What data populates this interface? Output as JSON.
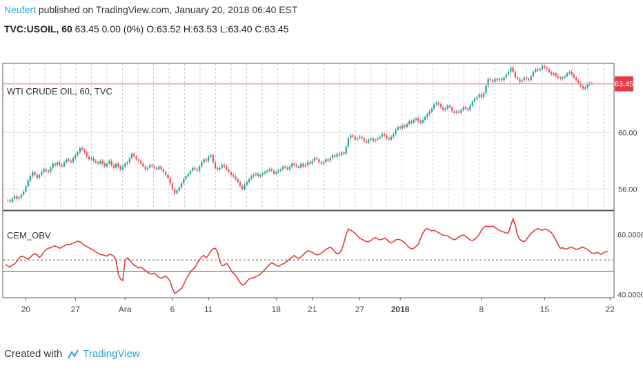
{
  "header": {
    "author": "Neufert",
    "published_text": " published on TradingView.com, January 20, 2018 06:40 EST",
    "symbol": "TVC:USOIL, 60",
    "quote": " 63.45 0.00 (0%) O:63.52 H:63.53 L:63.40 C:63.45"
  },
  "footer": {
    "created_with": "Created with",
    "brand": "TradingView",
    "logo_icon": "tradingview-logo-icon"
  },
  "colors": {
    "up": "#26a69a",
    "down": "#ef5350",
    "obv_line": "#e53935",
    "price_line": "#f48fb1",
    "price_badge": "#e53945",
    "brand": "#2a9fd6"
  },
  "chart_data": [
    {
      "type": "candlestick",
      "title": "WTI CRUDE OIL, 60, TVC",
      "y_ticks": [
        "56.00",
        "60.00"
      ],
      "y_tick_values": [
        56,
        60
      ],
      "ylim": [
        54.6,
        64.8
      ],
      "last_price": 63.45,
      "last_price_label": "63.45",
      "x_tick_labels": [
        "20",
        "27",
        "Ara",
        "6",
        "11",
        "18",
        "21",
        "27",
        "2018",
        "8",
        "15",
        "22"
      ],
      "x_tick_index": [
        9,
        31,
        53,
        74,
        90,
        120,
        136,
        157,
        175,
        211,
        239,
        268
      ],
      "grid": true,
      "series": [
        {
          "values": [
            55.2,
            55.2,
            55.1,
            55.3,
            55.5,
            55.3,
            55.4,
            55.6,
            55.8,
            56.2,
            56.6,
            56.9,
            57.2,
            57.0,
            56.8,
            57.0,
            57.2,
            57.4,
            57.3,
            57.2,
            57.5,
            57.8,
            57.7,
            57.9,
            57.7,
            57.6,
            57.9,
            58.1,
            58.0,
            57.9,
            58.2,
            58.4,
            58.6,
            58.9,
            58.8,
            58.6,
            58.3,
            58.1,
            58.2,
            58.0,
            57.9,
            57.8,
            58.0,
            57.8,
            57.6,
            57.8,
            58.0,
            57.7,
            57.5,
            57.8,
            57.6,
            57.4,
            57.6,
            57.8,
            57.9,
            58.2,
            58.5,
            58.3,
            58.1,
            58.0,
            57.8,
            57.6,
            57.4,
            57.5,
            57.7,
            57.6,
            57.5,
            57.4,
            57.6,
            57.4,
            57.2,
            57.0,
            56.8,
            56.4,
            56.0,
            55.7,
            55.9,
            56.1,
            56.4,
            56.7,
            56.9,
            57.1,
            57.3,
            57.5,
            57.4,
            57.3,
            57.6,
            57.9,
            58.1,
            58.0,
            58.3,
            58.4,
            57.9,
            57.5,
            57.4,
            57.5,
            57.7,
            57.6,
            57.4,
            57.2,
            57.0,
            56.9,
            56.7,
            56.5,
            56.2,
            56.0,
            56.3,
            56.5,
            56.7,
            56.9,
            57.0,
            57.1,
            56.9,
            57.0,
            57.1,
            57.2,
            57.3,
            57.4,
            57.3,
            57.1,
            57.2,
            57.3,
            57.4,
            57.6,
            57.5,
            57.4,
            57.6,
            57.8,
            57.7,
            57.6,
            57.5,
            57.8,
            57.6,
            57.7,
            57.9,
            57.8,
            58.0,
            58.2,
            58.1,
            57.9,
            57.8,
            57.9,
            58.1,
            58.0,
            58.2,
            58.4,
            58.3,
            58.5,
            58.4,
            58.6,
            58.5,
            59.0,
            59.6,
            59.8,
            59.7,
            59.5,
            59.6,
            59.7,
            59.6,
            59.4,
            59.3,
            59.5,
            59.6,
            59.4,
            59.5,
            59.6,
            59.7,
            59.9,
            59.8,
            59.6,
            59.5,
            59.7,
            59.9,
            60.2,
            60.4,
            60.3,
            60.5,
            60.4,
            60.6,
            60.8,
            60.7,
            60.9,
            61.0,
            60.8,
            60.7,
            60.9,
            61.1,
            61.3,
            61.5,
            61.7,
            62.0,
            62.1,
            62.0,
            61.8,
            61.6,
            61.7,
            61.9,
            61.8,
            61.5,
            61.4,
            61.5,
            61.4,
            61.6,
            61.8,
            61.7,
            61.6,
            61.9,
            62.2,
            62.4,
            62.5,
            62.7,
            62.5,
            62.8,
            63.3,
            63.8,
            63.7,
            63.6,
            63.8,
            63.7,
            63.8,
            63.7,
            63.9,
            64.1,
            64.3,
            64.6,
            64.3,
            63.9,
            63.8,
            63.6,
            63.7,
            63.9,
            63.8,
            63.7,
            64.0,
            64.3,
            64.5,
            64.4,
            64.5,
            64.7,
            64.6,
            64.5,
            64.3,
            64.1,
            64.2,
            64.0,
            63.9,
            63.8,
            63.9,
            64.0,
            64.2,
            64.3,
            64.1,
            63.9,
            63.7,
            63.5,
            63.3,
            63.1,
            63.2,
            63.4,
            63.5,
            63.45
          ]
        }
      ]
    },
    {
      "type": "line",
      "title": "CEM_OBV",
      "y_ticks": [
        "60.0000",
        "40.0000"
      ],
      "y_tick_values": [
        60,
        40
      ],
      "ylim": [
        39.2,
        67.4
      ],
      "reference_line": 51.5,
      "series": [
        {
          "values": [
            50.0,
            49.5,
            49.2,
            49.8,
            50.2,
            51.0,
            52.2,
            52.8,
            52.6,
            52.2,
            51.8,
            52.4,
            53.2,
            53.6,
            53.2,
            52.4,
            53.0,
            54.2,
            55.0,
            55.4,
            55.6,
            56.0,
            56.2,
            55.8,
            55.4,
            55.8,
            56.2,
            56.6,
            56.6,
            56.8,
            57.2,
            57.4,
            57.8,
            57.6,
            57.0,
            56.4,
            56.0,
            55.6,
            55.2,
            54.8,
            54.2,
            53.8,
            53.4,
            53.2,
            53.0,
            52.8,
            53.4,
            53.2,
            52.8,
            51.4,
            46.8,
            45.2,
            44.6,
            51.4,
            52.2,
            51.6,
            50.6,
            49.8,
            49.4,
            48.8,
            49.2,
            48.6,
            48.0,
            47.4,
            47.0,
            46.8,
            47.2,
            46.4,
            45.8,
            45.4,
            45.8,
            46.2,
            45.4,
            44.4,
            42.0,
            40.4,
            40.8,
            41.4,
            42.0,
            43.4,
            45.0,
            46.4,
            47.6,
            48.4,
            49.0,
            50.4,
            51.6,
            52.6,
            53.0,
            52.2,
            53.2,
            54.4,
            55.2,
            55.4,
            54.2,
            51.2,
            49.6,
            49.8,
            50.4,
            49.4,
            48.0,
            47.2,
            46.4,
            45.2,
            44.0,
            43.2,
            43.4,
            44.4,
            45.2,
            45.4,
            45.6,
            46.0,
            46.4,
            46.8,
            47.6,
            48.4,
            49.2,
            50.0,
            50.6,
            50.2,
            49.8,
            49.4,
            49.8,
            50.2,
            50.6,
            51.2,
            51.8,
            52.4,
            53.0,
            52.4,
            52.0,
            52.6,
            53.2,
            54.0,
            54.6,
            54.4,
            54.0,
            53.6,
            53.2,
            53.4,
            53.8,
            54.4,
            55.0,
            55.4,
            55.8,
            55.2,
            54.2,
            53.6,
            53.8,
            54.8,
            57.2,
            60.0,
            61.8,
            61.4,
            61.0,
            60.4,
            59.6,
            58.8,
            58.4,
            58.0,
            57.6,
            57.6,
            58.0,
            58.6,
            59.0,
            58.6,
            58.2,
            58.4,
            58.8,
            58.4,
            57.6,
            57.2,
            57.6,
            58.2,
            58.4,
            58.2,
            57.8,
            57.2,
            56.4,
            55.6,
            55.2,
            55.4,
            56.0,
            56.8,
            58.6,
            60.4,
            61.6,
            62.0,
            61.6,
            61.2,
            61.4,
            61.0,
            60.6,
            60.2,
            59.8,
            59.6,
            59.6,
            59.0,
            58.6,
            58.2,
            58.6,
            59.2,
            59.6,
            59.8,
            59.4,
            58.8,
            58.2,
            58.0,
            58.4,
            59.0,
            60.0,
            61.4,
            62.4,
            62.8,
            62.6,
            62.6,
            62.8,
            62.4,
            61.8,
            61.4,
            61.0,
            60.8,
            60.4,
            60.6,
            63.0,
            65.2,
            63.2,
            59.8,
            58.4,
            57.8,
            57.6,
            58.4,
            59.4,
            60.4,
            61.0,
            61.6,
            62.0,
            61.6,
            61.4,
            61.8,
            61.6,
            61.2,
            60.6,
            59.6,
            58.2,
            56.6,
            55.4,
            55.6,
            55.2,
            55.2,
            55.6,
            55.8,
            55.4,
            55.0,
            55.2,
            55.6,
            55.8,
            55.4,
            55.0,
            54.4,
            53.8,
            53.6,
            54.0,
            53.8,
            53.4,
            53.8,
            54.2,
            54.4
          ]
        }
      ]
    }
  ]
}
